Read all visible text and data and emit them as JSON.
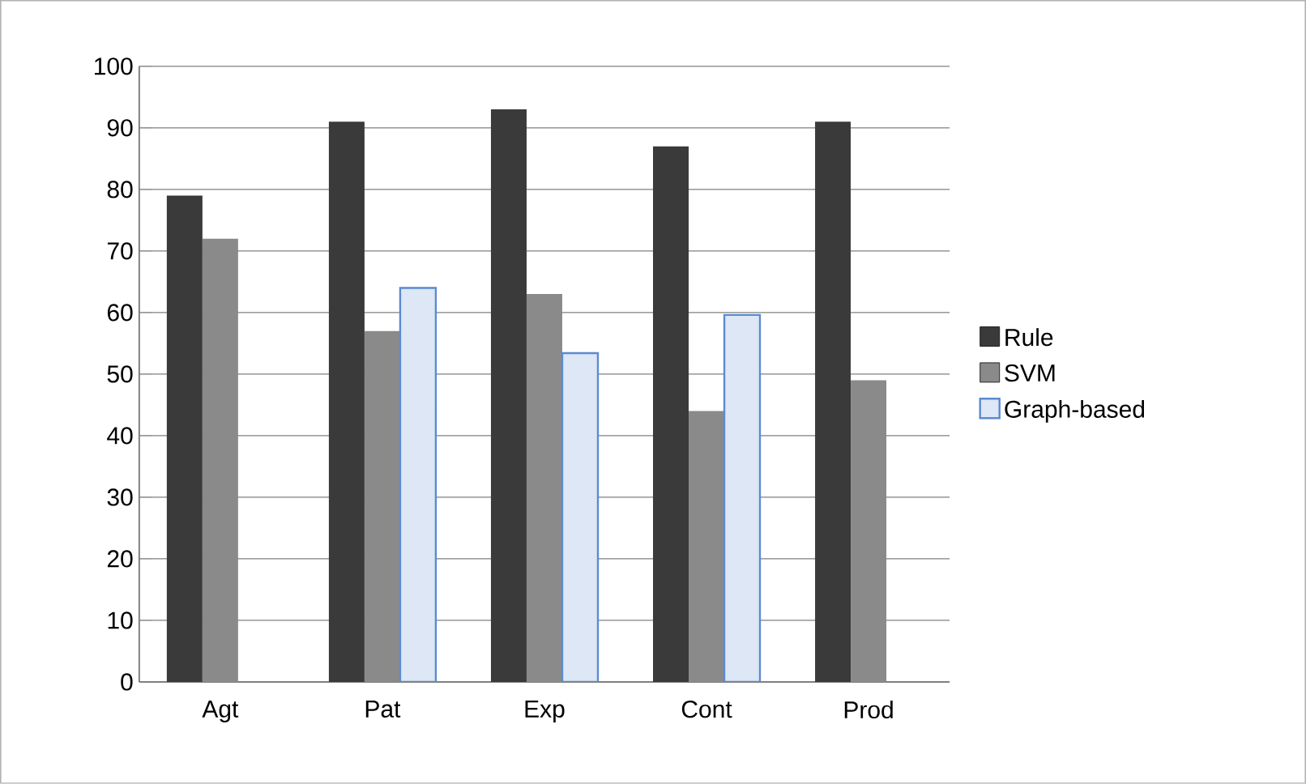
{
  "chart_data": {
    "type": "bar",
    "categories": [
      "Agt",
      "Pat",
      "Exp",
      "Cont",
      "Prod"
    ],
    "series": [
      {
        "name": "Rule",
        "color": "#3a3a3a",
        "values": [
          79,
          91,
          93,
          87,
          91
        ]
      },
      {
        "name": "SVM",
        "color": "#8a8a8a",
        "values": [
          72,
          57,
          63,
          44,
          49
        ]
      },
      {
        "name": "Graph-based",
        "color": "#dde7f5",
        "values": [
          null,
          64,
          53.4,
          59.6,
          null
        ]
      }
    ],
    "ylim": [
      0,
      100
    ],
    "yticks": [
      0,
      10,
      20,
      30,
      40,
      50,
      60,
      70,
      80,
      90,
      100
    ],
    "grid": "y",
    "legend": "right"
  }
}
